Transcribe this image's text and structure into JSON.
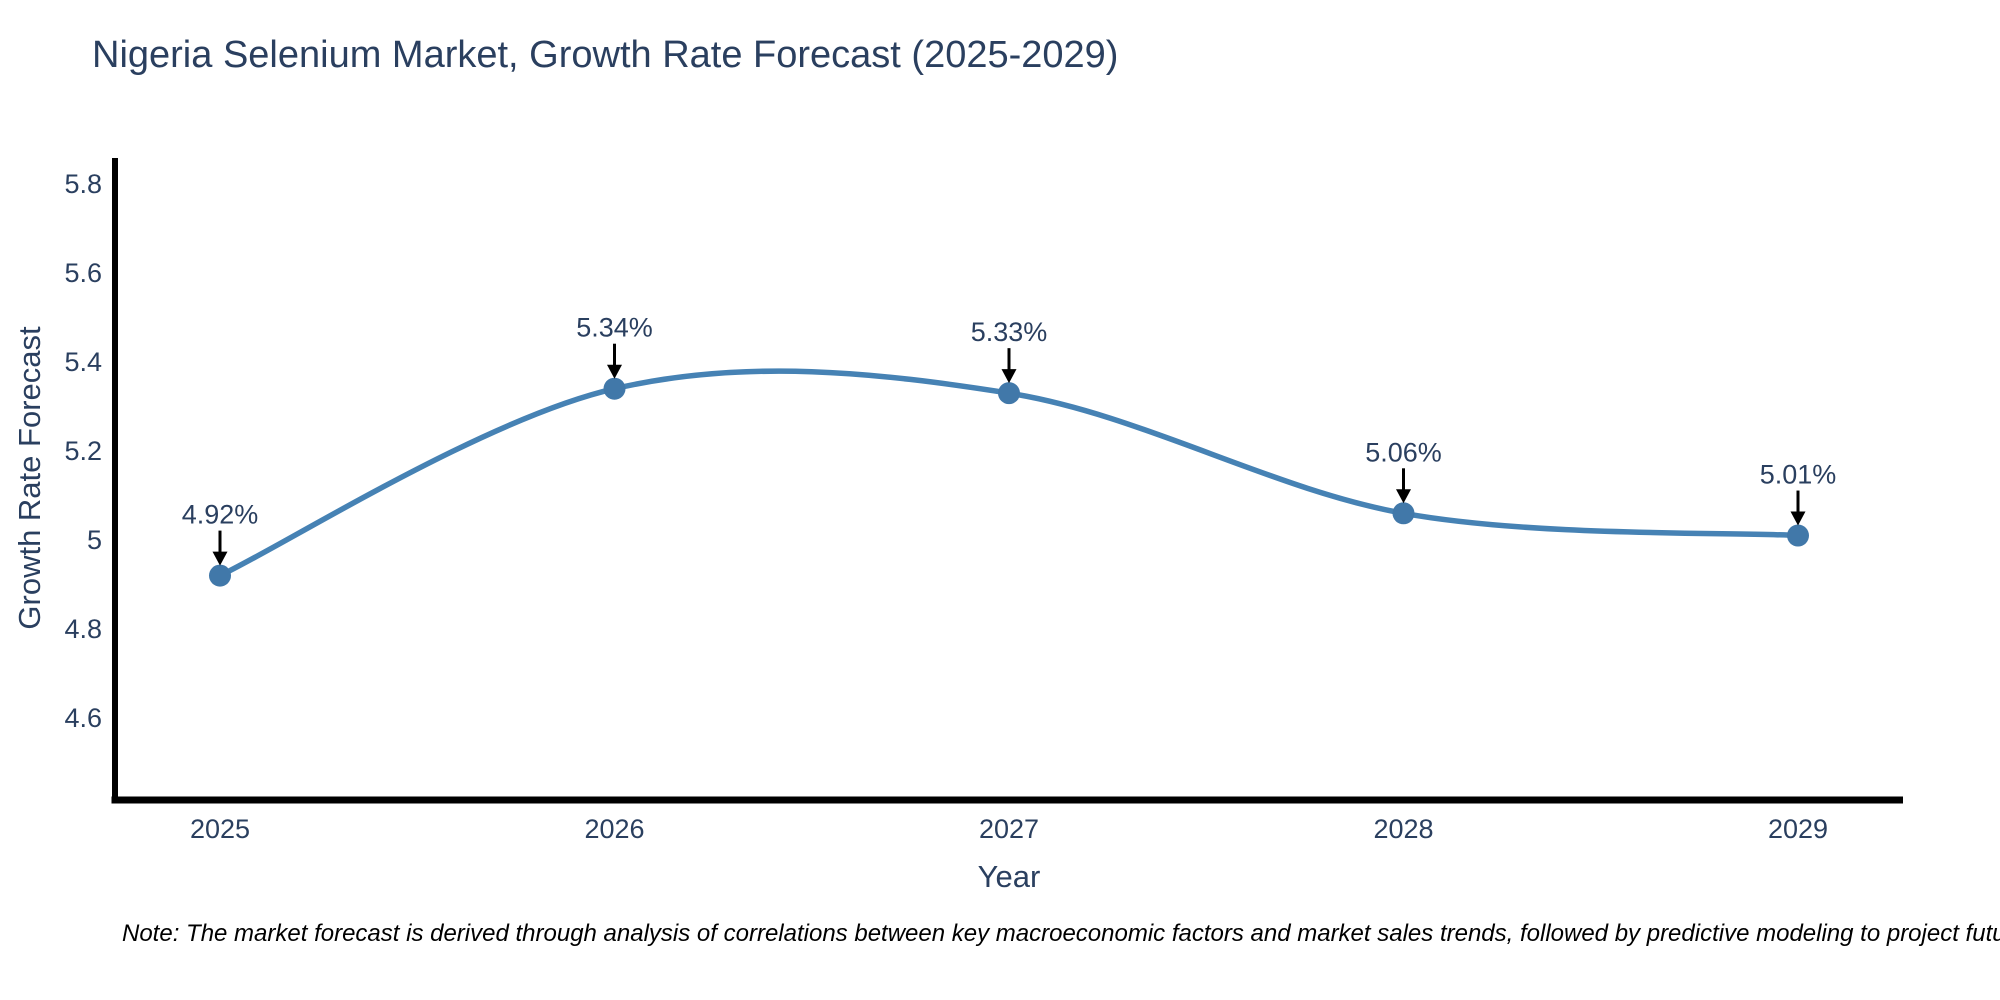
{
  "title": "Nigeria Selenium Market, Growth Rate Forecast (2025-2029)",
  "note": "Note: The market forecast is derived through analysis of correlations between key macroeconomic factors and market sales trends, followed by predictive modeling to project future sales",
  "chart_data": {
    "type": "line",
    "title": "Nigeria Selenium Market, Growth Rate Forecast (2025-2029)",
    "xlabel": "Year",
    "ylabel": "Growth Rate Forecast",
    "x": [
      2025,
      2026,
      2027,
      2028,
      2029
    ],
    "x_tick_labels": [
      "2025",
      "2026",
      "2027",
      "2028",
      "2029"
    ],
    "series": [
      {
        "name": "Growth Rate Forecast",
        "values": [
          4.92,
          5.34,
          5.33,
          5.06,
          5.01
        ]
      }
    ],
    "point_labels": [
      "4.92%",
      "5.34%",
      "5.33%",
      "5.06%",
      "5.01%"
    ],
    "y_ticks": [
      "4.6",
      "4.8",
      "5",
      "5.2",
      "5.4",
      "5.6",
      "5.8"
    ],
    "ylim": [
      4.41,
      5.86
    ],
    "grid": false,
    "legend_position": "none",
    "line_shape": "spline",
    "colors": {
      "line": "#4682b4",
      "marker": "#4178a9",
      "axis": "#000000",
      "text": "#2a3f5f",
      "annotation_arrow": "#000000"
    }
  }
}
